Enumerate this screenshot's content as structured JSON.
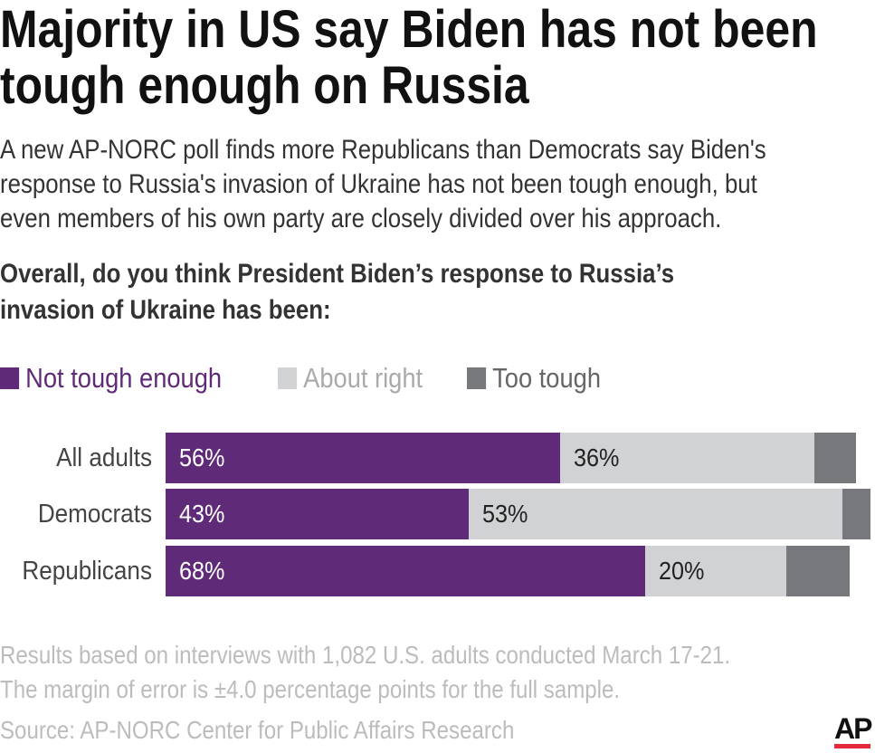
{
  "title_lines": [
    "Majority in US say Biden has not been",
    "tough enough on Russia"
  ],
  "subtitle_lines": [
    "A new AP-NORC poll finds more Republicans than Democrats say Biden's",
    "response to Russia's invasion of Ukraine has not been tough enough, but",
    "even members of his own party are closely divided over his approach."
  ],
  "question_lines": [
    "Overall, do you think President Biden’s response to Russia’s",
    "invasion of Ukraine has been:"
  ],
  "footnote_lines": [
    "Results based on interviews with 1,082 U.S. adults conducted March 17-21.",
    "The margin of error is ±4.0 percentage points for the full sample."
  ],
  "source": "Source: AP-NORC Center for Public Affairs Research",
  "logo": "AP",
  "chart_data": {
    "type": "bar",
    "orientation": "horizontal",
    "stacked": true,
    "categories": [
      "All adults",
      "Democrats",
      "Republicans"
    ],
    "series": [
      {
        "name": "Not tough enough",
        "color": "#5f2a78",
        "values": [
          56,
          43,
          68
        ],
        "labels": [
          "56%",
          "43%",
          "68%"
        ]
      },
      {
        "name": "About right",
        "color": "#d1d2d4",
        "values": [
          36,
          53,
          20
        ],
        "labels": [
          "36%",
          "53%",
          "20%"
        ]
      },
      {
        "name": "Too tough",
        "color": "#77787b",
        "values": [
          6,
          4,
          9
        ],
        "labels": [
          "",
          "",
          ""
        ]
      }
    ],
    "xlim": [
      0,
      100
    ],
    "legend_position": "top-left",
    "grid": false
  }
}
